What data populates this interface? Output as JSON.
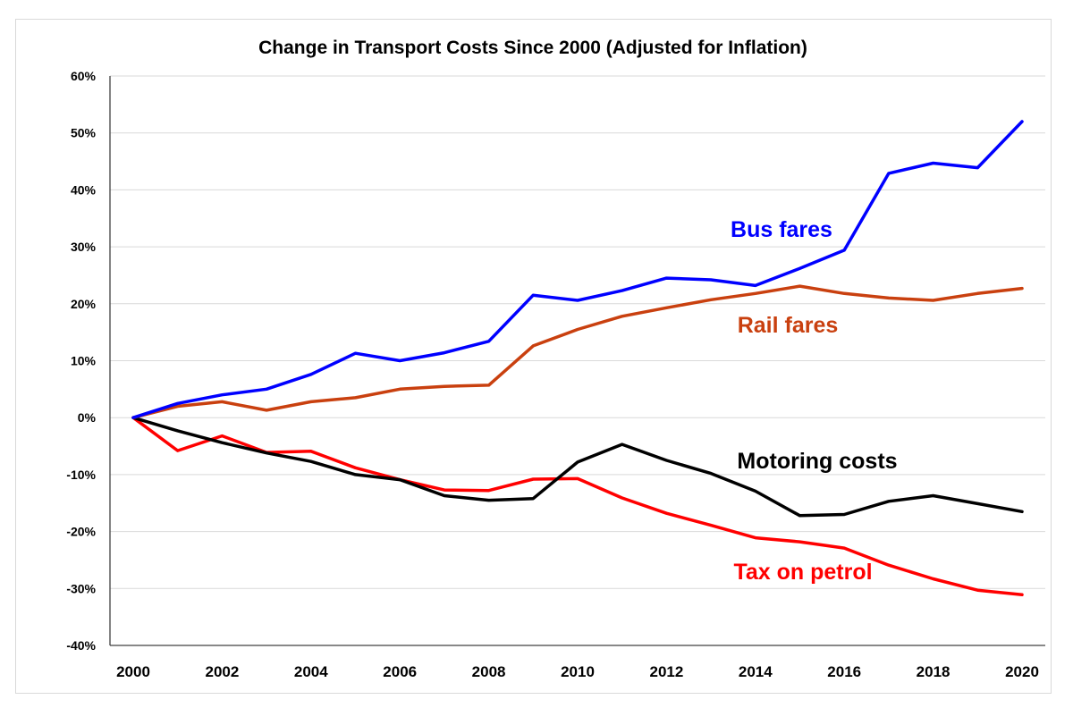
{
  "chart_data": {
    "type": "line",
    "title": "Change in Transport Costs Since 2000 (Adjusted for Inflation)",
    "xlabel": "",
    "ylabel": "",
    "x": [
      2000,
      2001,
      2002,
      2003,
      2004,
      2005,
      2006,
      2007,
      2008,
      2009,
      2010,
      2011,
      2012,
      2013,
      2014,
      2015,
      2016,
      2017,
      2018,
      2019,
      2020
    ],
    "xticks": [
      "2000",
      "2002",
      "2004",
      "2006",
      "2008",
      "2010",
      "2012",
      "2014",
      "2016",
      "2018",
      "2020"
    ],
    "xlim": [
      2000,
      2020
    ],
    "ylim": [
      -40,
      60
    ],
    "yticks": [
      60,
      50,
      40,
      30,
      20,
      10,
      0,
      -10,
      -20,
      -30,
      -40
    ],
    "ytick_labels": [
      "60%",
      "50%",
      "40%",
      "30%",
      "20%",
      "10%",
      "0%",
      "-10%",
      "-20%",
      "-30%",
      "-40%"
    ],
    "grid": true,
    "legend": "inline labels",
    "series": [
      {
        "name": "Bus fares",
        "color": "#0000ff",
        "label_position": "upper-right, above line",
        "values": [
          0,
          2.5,
          4.0,
          5.0,
          7.6,
          11.3,
          10.0,
          11.4,
          13.4,
          21.5,
          20.6,
          22.3,
          24.5,
          24.2,
          23.2,
          26.2,
          29.4,
          42.9,
          44.7,
          43.9,
          52.0
        ]
      },
      {
        "name": "Rail fares",
        "color": "#c9400f",
        "label_position": "right, below line",
        "values": [
          0,
          2.0,
          2.8,
          1.3,
          2.8,
          3.5,
          5.0,
          5.5,
          5.7,
          12.6,
          15.5,
          17.8,
          19.3,
          20.7,
          21.8,
          23.1,
          21.8,
          21.0,
          20.6,
          21.8,
          22.7
        ]
      },
      {
        "name": "Motoring costs",
        "color": "#000000",
        "label_position": "right, above line",
        "values": [
          0,
          -2.3,
          -4.4,
          -6.2,
          -7.7,
          -10.0,
          -10.9,
          -13.7,
          -14.5,
          -14.2,
          -7.8,
          -4.7,
          -7.5,
          -9.8,
          -12.9,
          -17.2,
          -17.0,
          -14.7,
          -13.7,
          -15.1,
          -16.5
        ]
      },
      {
        "name": "Tax on petrol",
        "color": "#ff0000",
        "label_position": "lower-right, below line",
        "values": [
          0,
          -5.8,
          -3.2,
          -6.1,
          -5.9,
          -8.8,
          -10.9,
          -12.7,
          -12.8,
          -10.8,
          -10.7,
          -14.1,
          -16.8,
          -18.9,
          -21.1,
          -21.8,
          -22.9,
          -25.9,
          -28.3,
          -30.3,
          -31.1
        ]
      }
    ]
  }
}
